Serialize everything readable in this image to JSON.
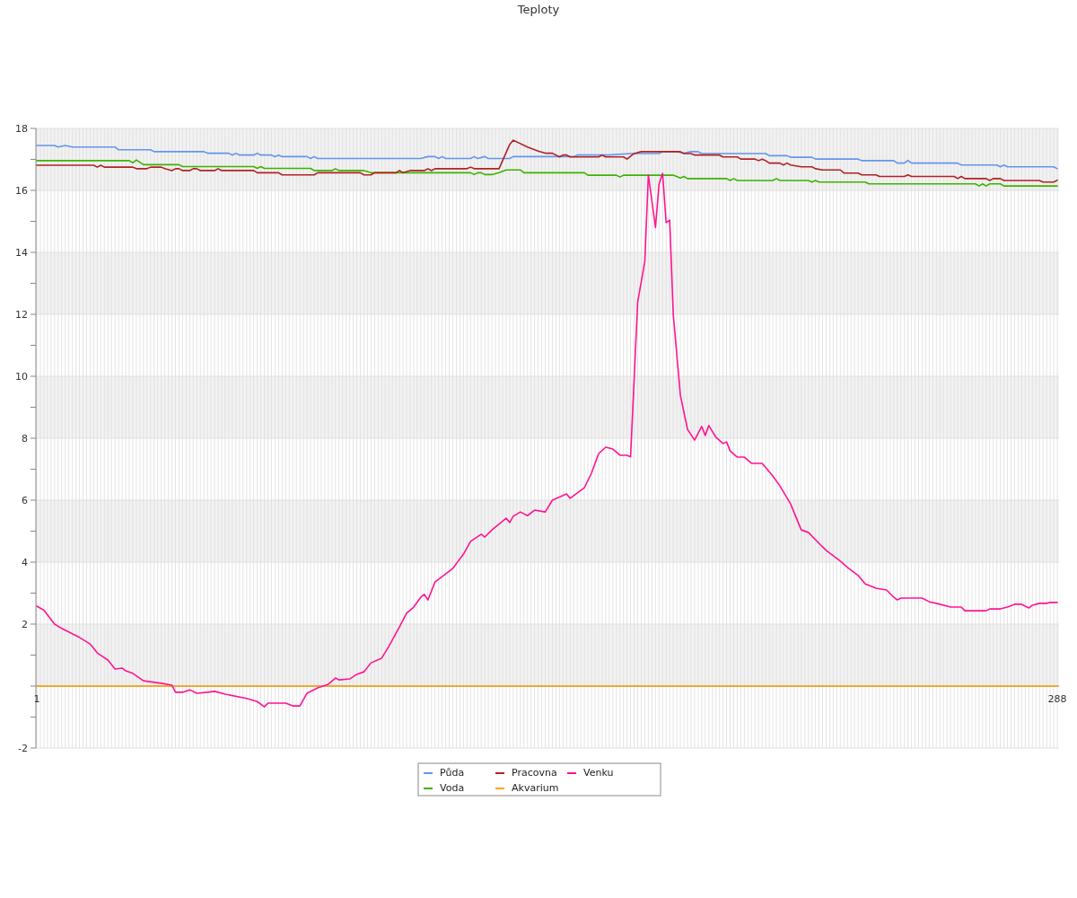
{
  "chart_data": {
    "type": "line",
    "title": "Teploty",
    "legend": "bottom",
    "grid": true,
    "xlim": [
      1,
      288
    ],
    "xticks": [
      1,
      {
        "value": 2,
        "label": null
      },
      {
        "value": 3,
        "label": null
      },
      {
        "value": 4,
        "label": null
      },
      {
        "value": 5,
        "label": null
      },
      {
        "value": 6,
        "label": null
      },
      {
        "value": 7,
        "label": null
      },
      {
        "value": 8,
        "label": null
      },
      {
        "value": 9,
        "label": null
      },
      {
        "value": 10,
        "label": null
      },
      {
        "value": 11,
        "label": null
      },
      {
        "value": 12,
        "label": null
      },
      {
        "value": 13,
        "label": null
      },
      {
        "value": 14,
        "label": null
      },
      {
        "value": 15,
        "label": null
      },
      {
        "value": 16,
        "label": null
      },
      {
        "value": 17,
        "label": null
      },
      {
        "value": 18,
        "label": null
      },
      {
        "value": 19,
        "label": null
      },
      {
        "value": 20,
        "label": null
      },
      {
        "value": 21,
        "label": null
      },
      {
        "value": 22,
        "label": null
      },
      {
        "value": 23,
        "label": null
      },
      {
        "value": 24,
        "label": null
      },
      {
        "value": 25,
        "label": null
      },
      {
        "value": 26,
        "label": null
      },
      {
        "value": 27,
        "label": null
      },
      {
        "value": 28,
        "label": null
      },
      {
        "value": 29,
        "label": null
      },
      {
        "value": 30,
        "label": null
      },
      {
        "value": 31,
        "label": null
      },
      {
        "value": 32,
        "label": null
      },
      {
        "value": 33,
        "label": null
      },
      {
        "value": 34,
        "label": null
      },
      {
        "value": 35,
        "label": null
      },
      {
        "value": 36,
        "label": null
      },
      {
        "value": 37,
        "label": null
      },
      {
        "value": 38,
        "label": null
      },
      {
        "value": 39,
        "label": null
      },
      {
        "value": 40,
        "label": null
      },
      {
        "value": 41,
        "label": null
      },
      {
        "value": 42,
        "label": null
      },
      {
        "value": 43,
        "label": null
      },
      {
        "value": 44,
        "label": null
      },
      {
        "value": 45,
        "label": null
      },
      {
        "value": 46,
        "label": null
      },
      {
        "value": 47,
        "label": null
      },
      {
        "value": 48,
        "label": null
      },
      {
        "value": 49,
        "label": null
      },
      {
        "value": 50,
        "label": null
      },
      {
        "value": 51,
        "label": null
      },
      {
        "value": 52,
        "label": null
      },
      {
        "value": 53,
        "label": null
      },
      {
        "value": 54,
        "label": null
      },
      {
        "value": 55,
        "label": null
      },
      {
        "value": 56,
        "label": null
      },
      {
        "value": 57,
        "label": null
      },
      {
        "value": 58,
        "label": null
      },
      {
        "value": 59,
        "label": null
      },
      {
        "value": 60,
        "label": null
      },
      {
        "value": 61,
        "label": null
      },
      {
        "value": 62,
        "label": null
      },
      {
        "value": 63,
        "label": null
      },
      {
        "value": 64,
        "label": null
      },
      {
        "value": 65,
        "label": null
      },
      {
        "value": 66,
        "label": null
      },
      {
        "value": 67,
        "label": null
      },
      {
        "value": 68,
        "label": null
      },
      {
        "value": 69,
        "label": null
      },
      {
        "value": 70,
        "label": null
      },
      {
        "value": 71,
        "label": null
      },
      {
        "value": 72,
        "label": null
      },
      {
        "value": 73,
        "label": null
      },
      {
        "value": 74,
        "label": null
      },
      {
        "value": 75,
        "label": null
      },
      {
        "value": 76,
        "label": null
      },
      {
        "value": 77,
        "label": null
      },
      {
        "value": 78,
        "label": null
      },
      {
        "value": 79,
        "label": null
      },
      {
        "value": 80,
        "label": null
      },
      {
        "value": 81,
        "label": null
      },
      {
        "value": 82,
        "label": null
      },
      {
        "value": 83,
        "label": null
      },
      {
        "value": 84,
        "label": null
      },
      {
        "value": 85,
        "label": null
      },
      {
        "value": 86,
        "label": null
      },
      {
        "value": 87,
        "label": null
      },
      {
        "value": 88,
        "label": null
      },
      {
        "value": 89,
        "label": null
      },
      {
        "value": 90,
        "label": null
      },
      {
        "value": 91,
        "label": null
      },
      {
        "value": 92,
        "label": null
      },
      {
        "value": 93,
        "label": null
      },
      {
        "value": 94,
        "label": null
      },
      {
        "value": 95,
        "label": null
      },
      {
        "value": 96,
        "label": null
      },
      {
        "value": 97,
        "label": null
      },
      {
        "value": 98,
        "label": null
      },
      {
        "value": 99,
        "label": null
      },
      {
        "value": 100,
        "label": null
      },
      {
        "value": 101,
        "label": null
      },
      {
        "value": 102,
        "label": null
      },
      {
        "value": 103,
        "label": null
      },
      {
        "value": 104,
        "label": null
      },
      {
        "value": 105,
        "label": null
      },
      {
        "value": 106,
        "label": null
      },
      {
        "value": 107,
        "label": null
      },
      {
        "value": 108,
        "label": null
      },
      {
        "value": 109,
        "label": null
      },
      {
        "value": 110,
        "label": null
      },
      {
        "value": 111,
        "label": null
      },
      {
        "value": 112,
        "label": null
      },
      {
        "value": 113,
        "label": null
      },
      {
        "value": 114,
        "label": null
      },
      {
        "value": 115,
        "label": null
      },
      {
        "value": 116,
        "label": null
      },
      {
        "value": 117,
        "label": null
      },
      {
        "value": 118,
        "label": null
      },
      {
        "value": 119,
        "label": null
      },
      {
        "value": 120,
        "label": null
      },
      {
        "value": 121,
        "label": null
      },
      {
        "value": 122,
        "label": null
      },
      {
        "value": 123,
        "label": null
      },
      {
        "value": 124,
        "label": null
      },
      {
        "value": 125,
        "label": null
      },
      {
        "value": 126,
        "label": null
      },
      {
        "value": 127,
        "label": null
      },
      {
        "value": 128,
        "label": null
      },
      {
        "value": 129,
        "label": null
      },
      {
        "value": 130,
        "label": null
      },
      {
        "value": 131,
        "label": null
      },
      {
        "value": 132,
        "label": null
      },
      {
        "value": 133,
        "label": null
      },
      {
        "value": 134,
        "label": null
      },
      {
        "value": 135,
        "label": null
      },
      {
        "value": 136,
        "label": null
      },
      {
        "value": 137,
        "label": null
      },
      {
        "value": 138,
        "label": null
      },
      {
        "value": 139,
        "label": null
      },
      {
        "value": 140,
        "label": null
      },
      {
        "value": 141,
        "label": null
      },
      {
        "value": 142,
        "label": null
      },
      {
        "value": 143,
        "label": null
      },
      {
        "value": 144,
        "label": null
      },
      {
        "value": 145,
        "label": null
      },
      {
        "value": 146,
        "label": null
      },
      {
        "value": 147,
        "label": null
      },
      {
        "value": 148,
        "label": null
      },
      {
        "value": 149,
        "label": null
      },
      {
        "value": 150,
        "label": null
      },
      {
        "value": 151,
        "label": null
      },
      {
        "value": 152,
        "label": null
      },
      {
        "value": 153,
        "label": null
      },
      {
        "value": 154,
        "label": null
      },
      {
        "value": 155,
        "label": null
      },
      {
        "value": 156,
        "label": null
      },
      {
        "value": 157,
        "label": null
      },
      {
        "value": 158,
        "label": null
      },
      {
        "value": 159,
        "label": null
      },
      {
        "value": 160,
        "label": null
      },
      {
        "value": 161,
        "label": null
      },
      {
        "value": 162,
        "label": null
      },
      {
        "value": 163,
        "label": null
      },
      {
        "value": 164,
        "label": null
      },
      {
        "value": 165,
        "label": null
      },
      {
        "value": 166,
        "label": null
      },
      {
        "value": 167,
        "label": null
      },
      {
        "value": 168,
        "label": null
      },
      {
        "value": 169,
        "label": null
      },
      {
        "value": 170,
        "label": null
      },
      {
        "value": 171,
        "label": null
      },
      {
        "value": 172,
        "label": null
      },
      {
        "value": 173,
        "label": null
      },
      {
        "value": 174,
        "label": null
      },
      {
        "value": 175,
        "label": null
      },
      {
        "value": 176,
        "label": null
      },
      {
        "value": 177,
        "label": null
      },
      {
        "value": 178,
        "label": null
      },
      {
        "value": 179,
        "label": null
      },
      {
        "value": 180,
        "label": null
      },
      {
        "value": 181,
        "label": null
      },
      {
        "value": 182,
        "label": null
      },
      {
        "value": 183,
        "label": null
      },
      {
        "value": 184,
        "label": null
      },
      {
        "value": 185,
        "label": null
      },
      {
        "value": 186,
        "label": null
      },
      {
        "value": 187,
        "label": null
      },
      {
        "value": 188,
        "label": null
      },
      {
        "value": 189,
        "label": null
      },
      {
        "value": 190,
        "label": null
      },
      {
        "value": 191,
        "label": null
      },
      {
        "value": 192,
        "label": null
      },
      {
        "value": 193,
        "label": null
      },
      {
        "value": 194,
        "label": null
      },
      {
        "value": 195,
        "label": null
      },
      {
        "value": 196,
        "label": null
      },
      {
        "value": 197,
        "label": null
      },
      {
        "value": 198,
        "label": null
      },
      {
        "value": 199,
        "label": null
      },
      {
        "value": 200,
        "label": null
      },
      {
        "value": 201,
        "label": null
      },
      {
        "value": 202,
        "label": null
      },
      {
        "value": 203,
        "label": null
      },
      {
        "value": 204,
        "label": null
      },
      {
        "value": 205,
        "label": null
      },
      {
        "value": 206,
        "label": null
      },
      {
        "value": 207,
        "label": null
      },
      {
        "value": 208,
        "label": null
      },
      {
        "value": 209,
        "label": null
      },
      {
        "value": 210,
        "label": null
      },
      {
        "value": 211,
        "label": null
      },
      {
        "value": 212,
        "label": null
      },
      {
        "value": 213,
        "label": null
      },
      {
        "value": 214,
        "label": null
      },
      {
        "value": 215,
        "label": null
      },
      {
        "value": 216,
        "label": null
      },
      {
        "value": 217,
        "label": null
      },
      {
        "value": 218,
        "label": null
      },
      {
        "value": 219,
        "label": null
      },
      {
        "value": 220,
        "label": null
      },
      {
        "value": 221,
        "label": null
      },
      {
        "value": 222,
        "label": null
      },
      {
        "value": 223,
        "label": null
      },
      {
        "value": 224,
        "label": null
      },
      {
        "value": 225,
        "label": null
      },
      {
        "value": 226,
        "label": null
      },
      {
        "value": 227,
        "label": null
      },
      {
        "value": 228,
        "label": null
      },
      {
        "value": 229,
        "label": null
      },
      {
        "value": 230,
        "label": null
      },
      {
        "value": 231,
        "label": null
      },
      {
        "value": 232,
        "label": null
      },
      {
        "value": 233,
        "label": null
      },
      {
        "value": 234,
        "label": null
      },
      {
        "value": 235,
        "label": null
      },
      {
        "value": 236,
        "label": null
      },
      {
        "value": 237,
        "label": null
      },
      {
        "value": 238,
        "label": null
      },
      {
        "value": 239,
        "label": null
      },
      {
        "value": 240,
        "label": null
      },
      {
        "value": 241,
        "label": null
      },
      {
        "value": 242,
        "label": null
      },
      {
        "value": 243,
        "label": null
      },
      {
        "value": 244,
        "label": null
      },
      {
        "value": 245,
        "label": null
      },
      {
        "value": 246,
        "label": null
      },
      {
        "value": 247,
        "label": null
      },
      {
        "value": 248,
        "label": null
      },
      {
        "value": 249,
        "label": null
      },
      {
        "value": 250,
        "label": null
      },
      {
        "value": 251,
        "label": null
      },
      {
        "value": 252,
        "label": null
      },
      {
        "value": 253,
        "label": null
      },
      {
        "value": 254,
        "label": null
      },
      {
        "value": 255,
        "label": null
      },
      {
        "value": 256,
        "label": null
      },
      {
        "value": 257,
        "label": null
      },
      {
        "value": 258,
        "label": null
      },
      {
        "value": 259,
        "label": null
      },
      {
        "value": 260,
        "label": null
      },
      {
        "value": 261,
        "label": null
      },
      {
        "value": 262,
        "label": null
      },
      {
        "value": 263,
        "label": null
      },
      {
        "value": 264,
        "label": null
      },
      {
        "value": 265,
        "label": null
      },
      {
        "value": 266,
        "label": null
      },
      {
        "value": 267,
        "label": null
      },
      {
        "value": 268,
        "label": null
      },
      {
        "value": 269,
        "label": null
      },
      {
        "value": 270,
        "label": null
      },
      {
        "value": 271,
        "label": null
      },
      {
        "value": 272,
        "label": null
      },
      {
        "value": 273,
        "label": null
      },
      {
        "value": 274,
        "label": null
      },
      {
        "value": 275,
        "label": null
      },
      {
        "value": 276,
        "label": null
      },
      {
        "value": 277,
        "label": null
      },
      {
        "value": 278,
        "label": null
      },
      {
        "value": 279,
        "label": null
      },
      {
        "value": 280,
        "label": null
      },
      {
        "value": 281,
        "label": null
      },
      {
        "value": 282,
        "label": null
      },
      {
        "value": 283,
        "label": null
      },
      {
        "value": 284,
        "label": null
      },
      {
        "value": 285,
        "label": null
      },
      {
        "value": 286,
        "label": null
      },
      {
        "value": 287,
        "label": null
      },
      288
    ],
    "ylim": [
      -2,
      18
    ],
    "yticks": [
      -2,
      {
        "value": -1,
        "label": null
      },
      {
        "value": 0,
        "label": null
      },
      {
        "value": 1,
        "label": null
      },
      2,
      {
        "value": 3,
        "label": null
      },
      4,
      {
        "value": 5,
        "label": null
      },
      6,
      {
        "value": 7,
        "label": null
      },
      8,
      {
        "value": 9,
        "label": null
      },
      10,
      {
        "value": 11,
        "label": null
      },
      12,
      {
        "value": 13,
        "label": null
      },
      14,
      {
        "value": 15,
        "label": null
      },
      16,
      {
        "value": 17,
        "label": null
      },
      18
    ],
    "series": [
      {
        "name": "Půda",
        "color": "#6495ed",
        "x": [
          1,
          6,
          7,
          9,
          11,
          23,
          24,
          33,
          34,
          48,
          49,
          55,
          56,
          57,
          58,
          62,
          63,
          64,
          67,
          68,
          69,
          70,
          77,
          78,
          79,
          80,
          109,
          111,
          113,
          114,
          115,
          116,
          123,
          124,
          125,
          127,
          128,
          134,
          135,
          147,
          152,
          153,
          162,
          168,
          176,
          177,
          181,
          183,
          185,
          187,
          188,
          206,
          207,
          212,
          213,
          219,
          220,
          232,
          233,
          242,
          243,
          245,
          246,
          247,
          260,
          261,
          271,
          272,
          273,
          274,
          287,
          288
        ],
        "values": [
          17.45,
          17.45,
          17.4,
          17.45,
          17.4,
          17.4,
          17.31,
          17.31,
          17.25,
          17.25,
          17.2,
          17.2,
          17.14,
          17.2,
          17.14,
          17.14,
          17.2,
          17.14,
          17.14,
          17.09,
          17.14,
          17.09,
          17.09,
          17.03,
          17.09,
          17.03,
          17.03,
          17.09,
          17.09,
          17.03,
          17.09,
          17.03,
          17.03,
          17.09,
          17.03,
          17.09,
          17.03,
          17.03,
          17.09,
          17.09,
          17.09,
          17.14,
          17.14,
          17.19,
          17.19,
          17.25,
          17.25,
          17.2,
          17.25,
          17.25,
          17.19,
          17.19,
          17.12,
          17.12,
          17.07,
          17.07,
          17.01,
          17.01,
          16.96,
          16.96,
          16.88,
          16.88,
          16.97,
          16.88,
          16.88,
          16.82,
          16.82,
          16.76,
          16.82,
          16.76,
          16.76,
          16.7
        ]
      },
      {
        "name": "Voda",
        "color": "#3cb300",
        "x": [
          1,
          27,
          28,
          29,
          31,
          41,
          42,
          62,
          63,
          64,
          65,
          78,
          79,
          84,
          85,
          86,
          93,
          95,
          123,
          124,
          125,
          126,
          127,
          129,
          131,
          133,
          137,
          138,
          155,
          156,
          164,
          165,
          166,
          180,
          182,
          183,
          184,
          195,
          196,
          197,
          198,
          208,
          209,
          210,
          218,
          219,
          220,
          221,
          234,
          235,
          265,
          266,
          267,
          268,
          269,
          272,
          273,
          288
        ],
        "values": [
          16.96,
          16.96,
          16.89,
          16.98,
          16.83,
          16.83,
          16.77,
          16.77,
          16.71,
          16.77,
          16.71,
          16.71,
          16.64,
          16.64,
          16.7,
          16.64,
          16.64,
          16.57,
          16.57,
          16.51,
          16.57,
          16.57,
          16.51,
          16.51,
          16.57,
          16.66,
          16.66,
          16.57,
          16.57,
          16.49,
          16.49,
          16.43,
          16.49,
          16.49,
          16.4,
          16.45,
          16.38,
          16.38,
          16.32,
          16.38,
          16.32,
          16.32,
          16.38,
          16.32,
          16.32,
          16.27,
          16.32,
          16.27,
          16.27,
          16.21,
          16.21,
          16.14,
          16.21,
          16.14,
          16.21,
          16.21,
          16.14,
          16.14
        ]
      },
      {
        "name": "Pracovna",
        "color": "#b22222",
        "x": [
          1,
          17,
          18,
          19,
          20,
          28,
          29,
          32,
          33,
          36,
          37,
          39,
          40,
          41,
          42,
          44,
          45,
          46,
          47,
          51,
          52,
          53,
          62,
          63,
          69,
          70,
          79,
          80,
          92,
          93,
          95,
          96,
          102,
          103,
          104,
          106,
          110,
          111,
          112,
          113,
          122,
          123,
          124,
          131,
          134,
          135,
          139,
          142,
          144,
          146,
          148,
          149,
          150,
          151,
          159,
          160,
          161,
          166,
          167,
          169,
          171,
          182,
          183,
          185,
          186,
          193,
          194,
          198,
          199,
          203,
          204,
          205,
          206,
          207,
          210,
          211,
          212,
          213,
          216,
          219,
          220,
          222,
          227,
          228,
          232,
          233,
          237,
          238,
          245,
          246,
          247,
          259,
          260,
          261,
          262,
          268,
          269,
          270,
          272,
          273,
          283,
          284,
          287,
          288
        ],
        "values": [
          16.81,
          16.81,
          16.75,
          16.81,
          16.75,
          16.75,
          16.7,
          16.7,
          16.75,
          16.75,
          16.7,
          16.64,
          16.7,
          16.7,
          16.64,
          16.64,
          16.7,
          16.7,
          16.64,
          16.64,
          16.7,
          16.64,
          16.64,
          16.57,
          16.57,
          16.5,
          16.5,
          16.57,
          16.57,
          16.5,
          16.5,
          16.57,
          16.57,
          16.64,
          16.57,
          16.64,
          16.64,
          16.7,
          16.64,
          16.7,
          16.7,
          16.75,
          16.7,
          16.7,
          17.48,
          17.62,
          17.4,
          17.27,
          17.2,
          17.2,
          17.08,
          17.14,
          17.14,
          17.08,
          17.08,
          17.14,
          17.08,
          17.08,
          17.01,
          17.19,
          17.25,
          17.25,
          17.19,
          17.19,
          17.14,
          17.14,
          17.08,
          17.08,
          17.01,
          17.01,
          16.96,
          17.01,
          16.96,
          16.88,
          16.88,
          16.82,
          16.88,
          16.82,
          16.76,
          16.76,
          16.7,
          16.66,
          16.66,
          16.56,
          16.56,
          16.5,
          16.5,
          16.45,
          16.45,
          16.5,
          16.45,
          16.45,
          16.38,
          16.45,
          16.38,
          16.38,
          16.32,
          16.38,
          16.38,
          16.32,
          16.32,
          16.27,
          16.27,
          16.33
        ]
      },
      {
        "name": "Akvarium",
        "color": "#ffa500",
        "x": [
          1,
          288
        ],
        "values": [
          0,
          0
        ]
      },
      {
        "name": "Venku",
        "color": "#ff1493",
        "x": [
          1,
          3,
          6,
          8,
          13,
          16,
          18,
          21,
          23,
          25,
          26,
          28,
          31,
          36,
          39,
          40,
          42,
          44,
          46,
          49,
          51,
          54,
          60,
          63,
          65,
          66,
          71,
          73,
          75,
          77,
          80,
          83,
          85,
          86,
          89,
          91,
          93,
          95,
          98,
          100,
          103,
          105,
          107,
          109,
          110,
          111,
          113,
          116,
          118,
          121,
          123,
          126,
          127,
          129,
          133,
          134,
          135,
          137,
          139,
          141,
          144,
          146,
          150,
          151,
          155,
          157,
          159,
          161,
          163,
          165,
          167,
          168,
          170,
          172,
          173,
          175,
          176,
          177,
          178,
          179,
          180,
          182,
          184,
          186,
          188,
          189,
          190,
          192,
          194,
          195,
          196,
          198,
          200,
          202,
          205,
          208,
          210,
          213,
          216,
          218,
          221,
          223,
          227,
          229,
          232,
          234,
          237,
          240,
          242,
          243,
          244,
          250,
          252,
          254,
          258,
          261,
          262,
          268,
          269,
          272,
          274,
          276,
          278,
          280,
          281,
          283,
          285,
          286,
          288
        ],
        "values": [
          2.58,
          2.45,
          2.0,
          1.86,
          1.57,
          1.36,
          1.07,
          0.84,
          0.55,
          0.58,
          0.49,
          0.41,
          0.17,
          0.09,
          0.03,
          -0.2,
          -0.2,
          -0.12,
          -0.23,
          -0.2,
          -0.17,
          -0.26,
          -0.4,
          -0.5,
          -0.67,
          -0.55,
          -0.55,
          -0.64,
          -0.64,
          -0.23,
          -0.06,
          0.06,
          0.26,
          0.2,
          0.23,
          0.38,
          0.46,
          0.75,
          0.9,
          1.28,
          1.91,
          2.35,
          2.55,
          2.87,
          2.96,
          2.78,
          3.36,
          3.62,
          3.8,
          4.26,
          4.67,
          4.9,
          4.81,
          5.04,
          5.42,
          5.28,
          5.48,
          5.62,
          5.5,
          5.68,
          5.62,
          6.0,
          6.2,
          6.06,
          6.4,
          6.87,
          7.5,
          7.71,
          7.65,
          7.45,
          7.45,
          7.4,
          12.4,
          13.7,
          16.5,
          14.8,
          16.2,
          16.55,
          14.96,
          15.04,
          12.0,
          9.39,
          8.29,
          7.94,
          8.38,
          8.09,
          8.41,
          8.03,
          7.83,
          7.88,
          7.59,
          7.39,
          7.39,
          7.19,
          7.19,
          6.78,
          6.46,
          5.88,
          5.04,
          4.96,
          4.61,
          4.38,
          4.03,
          3.83,
          3.57,
          3.3,
          3.16,
          3.1,
          2.87,
          2.78,
          2.84,
          2.84,
          2.72,
          2.67,
          2.55,
          2.55,
          2.43,
          2.43,
          2.49,
          2.49,
          2.55,
          2.64,
          2.64,
          2.52,
          2.61,
          2.67,
          2.67,
          2.7,
          2.7
        ]
      }
    ]
  }
}
